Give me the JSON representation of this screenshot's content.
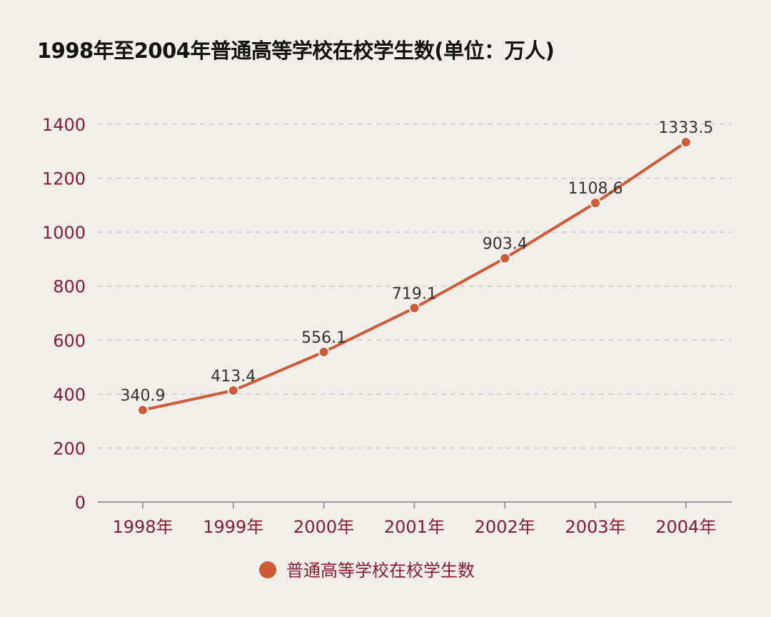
{
  "chart_data": {
    "type": "line",
    "title": "1998年至2004年普通高等学校在校学生数(单位：万人)",
    "categories": [
      "1998年",
      "1999年",
      "2000年",
      "2001年",
      "2002年",
      "2003年",
      "2004年"
    ],
    "series": [
      {
        "name": "普通高等学校在校学生数",
        "values": [
          340.9,
          413.4,
          556.1,
          719.1,
          903.4,
          1108.6,
          1333.5
        ],
        "color": "#d05a36"
      }
    ],
    "yticks": [
      0,
      200,
      400,
      600,
      800,
      1000,
      1200,
      1400
    ],
    "ylim": [
      0,
      1400
    ],
    "xlabel": "",
    "ylabel": "",
    "grid": true,
    "legend": "bottom",
    "colors": {
      "background": "#f2efea",
      "tick_label": "#8b1a33",
      "data_label": "#333333",
      "grid": "#cccccc"
    }
  }
}
